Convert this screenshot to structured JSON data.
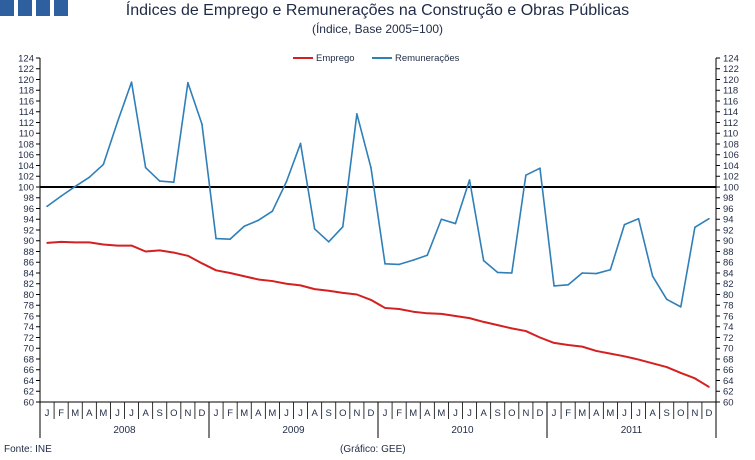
{
  "header": {
    "title": "Índices de Emprego e Remunerações na Construção e Obras Públicas",
    "subtitle": "(Índice, Base 2005=100)"
  },
  "footer": {
    "source": "Fonte: INE",
    "credit": "(Gráfico: GEE)"
  },
  "chart_data": {
    "type": "line",
    "title": "Índices de Emprego e Remunerações na Construção e Obras Públicas",
    "subtitle": "(Índice, Base 2005=100)",
    "ylim": [
      60,
      124
    ],
    "ytick_step": 2,
    "reference_line": 100,
    "legend_position": "top-center",
    "years": [
      "2008",
      "2009",
      "2010",
      "2011"
    ],
    "month_labels": [
      "J",
      "F",
      "M",
      "A",
      "M",
      "J",
      "J",
      "A",
      "S",
      "O",
      "N",
      "D"
    ],
    "series": [
      {
        "name": "Emprego",
        "color": "#d42020",
        "values": [
          89.6,
          89.8,
          89.7,
          89.7,
          89.3,
          89.1,
          89.1,
          88.0,
          88.2,
          87.8,
          87.2,
          85.8,
          84.5,
          84.0,
          83.4,
          82.8,
          82.5,
          82.0,
          81.7,
          81.0,
          80.7,
          80.3,
          80.0,
          79.0,
          77.5,
          77.3,
          76.8,
          76.5,
          76.4,
          76.0,
          75.6,
          74.9,
          74.3,
          73.7,
          73.2,
          72.0,
          71.0,
          70.6,
          70.3,
          69.5,
          69.0,
          68.5,
          67.9,
          67.2,
          66.5,
          65.4,
          64.4,
          62.8
        ]
      },
      {
        "name": "Remunerações",
        "color": "#2f7fb8",
        "values": [
          96.4,
          98.3,
          100.1,
          101.8,
          104.2,
          112.1,
          119.5,
          103.6,
          101.1,
          100.9,
          119.4,
          111.7,
          90.4,
          90.3,
          92.7,
          93.8,
          95.5,
          101.0,
          108.1,
          92.2,
          89.8,
          92.6,
          113.6,
          103.6,
          85.7,
          85.6,
          86.4,
          87.3,
          94.0,
          93.2,
          101.3,
          86.3,
          84.1,
          84.0,
          102.2,
          103.5,
          81.6,
          81.8,
          84.0,
          83.9,
          84.6,
          93.0,
          94.1,
          83.4,
          79.1,
          77.7,
          92.5,
          94.1
        ]
      }
    ]
  }
}
